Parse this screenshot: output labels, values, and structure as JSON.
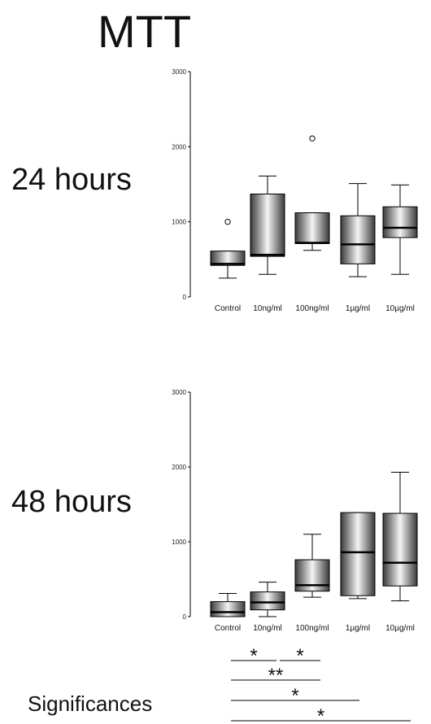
{
  "title": "MTT",
  "significances_label": "Significances",
  "chart_data": [
    {
      "type": "box",
      "row_label": "24 hours",
      "categories": [
        "Control",
        "10ng/ml",
        "100ng/ml",
        "1µg/ml",
        "10µg/ml"
      ],
      "ylim": [
        0,
        3000
      ],
      "yticks": [
        0,
        1000,
        2000,
        3000
      ],
      "boxes": [
        {
          "min": 250,
          "q1": 420,
          "median": 440,
          "q3": 610,
          "max": 610,
          "outliers": [
            1000
          ]
        },
        {
          "min": 300,
          "q1": 540,
          "median": 560,
          "q3": 1370,
          "max": 1610,
          "outliers": []
        },
        {
          "min": 620,
          "q1": 710,
          "median": 720,
          "q3": 1120,
          "max": 1120,
          "outliers": [
            2110
          ]
        },
        {
          "min": 270,
          "q1": 440,
          "median": 700,
          "q3": 1080,
          "max": 1510,
          "outliers": []
        },
        {
          "min": 300,
          "q1": 790,
          "median": 920,
          "q3": 1200,
          "max": 1490,
          "outliers": []
        }
      ]
    },
    {
      "type": "box",
      "row_label": "48 hours",
      "categories": [
        "Control",
        "10ng/ml",
        "100ng/ml",
        "1µg/ml",
        "10µg/ml"
      ],
      "ylim": [
        0,
        3000
      ],
      "yticks": [
        0,
        1000,
        2000,
        3000
      ],
      "boxes": [
        {
          "min": 0,
          "q1": 0,
          "median": 60,
          "q3": 200,
          "max": 310,
          "outliers": []
        },
        {
          "min": 0,
          "q1": 90,
          "median": 190,
          "q3": 330,
          "max": 460,
          "outliers": []
        },
        {
          "min": 260,
          "q1": 340,
          "median": 420,
          "q3": 760,
          "max": 1100,
          "outliers": []
        },
        {
          "min": 240,
          "q1": 280,
          "median": 860,
          "q3": 1390,
          "max": 1390,
          "outliers": []
        },
        {
          "min": 210,
          "q1": 410,
          "median": 720,
          "q3": 1380,
          "max": 1930,
          "outliers": []
        }
      ]
    }
  ],
  "significances": [
    {
      "label": "*",
      "from": 0,
      "to": 1
    },
    {
      "label": "*",
      "from": 1,
      "to": 2
    },
    {
      "label": "**",
      "from": 0,
      "to": 2
    },
    {
      "label": "*",
      "from": 0,
      "to": 3
    },
    {
      "label": "*",
      "from": 0,
      "to": 4
    }
  ]
}
